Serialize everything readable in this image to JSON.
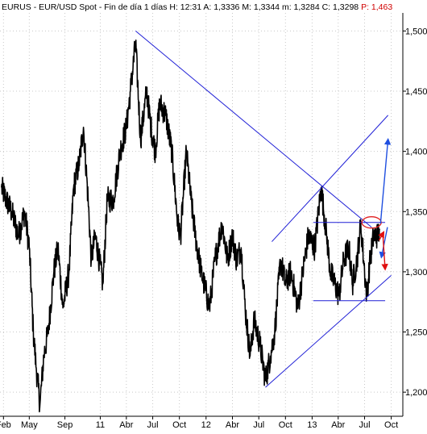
{
  "header": {
    "symbol": "EURUS",
    "sep1": "-",
    "name": "EUR/USD Spot",
    "sep2": "-",
    "interval": "Fin de día 1 días",
    "h_label": "H:",
    "h_value": "12:31",
    "a_label": "A:",
    "a_value": "1,3336",
    "m_label": "M:",
    "m_value": "1,3344",
    "mn_label": "m:",
    "mn_value": "1,3284",
    "c_label": "C:",
    "c_value": "1,3298",
    "p_label": "P:",
    "p_value": "1,463"
  },
  "colors": {
    "price": "#000000",
    "trendlines": "#1f1fd6",
    "arrow_up": "#1f4fe0",
    "arrow_down": "#e01010",
    "circle": "#e02020",
    "grid": "#c8c8c8",
    "p_value": "#d00000"
  },
  "chart_data": {
    "type": "line",
    "title": "EURUS - EUR/USD Spot - Fin de día 1 días",
    "x_ticks": [
      "Feb",
      "May",
      "Sep",
      "11",
      "Abr",
      "Jul",
      "Oct",
      "12",
      "Abr",
      "Jul",
      "Oct",
      "13",
      "Abr",
      "Jul",
      "Oct"
    ],
    "y_ticks": [
      "1,500",
      "1,450",
      "1,400",
      "1,350",
      "1,300",
      "1,250",
      "1,200"
    ],
    "ylim": [
      1.18,
      1.515
    ],
    "xlim": [
      "2010-01-20",
      "2013-11-10"
    ],
    "grid": true,
    "series": [
      {
        "values": [
          [
            "2010-01-25",
            1.37
          ],
          [
            "2010-02-10",
            1.36
          ],
          [
            "2010-03-01",
            1.35
          ],
          [
            "2010-03-25",
            1.33
          ],
          [
            "2010-04-15",
            1.35
          ],
          [
            "2010-05-01",
            1.32
          ],
          [
            "2010-05-15",
            1.25
          ],
          [
            "2010-05-25",
            1.22
          ],
          [
            "2010-06-07",
            1.19
          ],
          [
            "2010-06-20",
            1.23
          ],
          [
            "2010-07-05",
            1.25
          ],
          [
            "2010-07-25",
            1.3
          ],
          [
            "2010-08-08",
            1.32
          ],
          [
            "2010-08-25",
            1.27
          ],
          [
            "2010-09-15",
            1.3
          ],
          [
            "2010-10-01",
            1.37
          ],
          [
            "2010-10-20",
            1.39
          ],
          [
            "2010-11-04",
            1.42
          ],
          [
            "2010-11-20",
            1.36
          ],
          [
            "2010-12-01",
            1.31
          ],
          [
            "2010-12-15",
            1.33
          ],
          [
            "2011-01-10",
            1.29
          ],
          [
            "2011-01-25",
            1.36
          ],
          [
            "2011-02-15",
            1.36
          ],
          [
            "2011-03-10",
            1.4
          ],
          [
            "2011-04-01",
            1.42
          ],
          [
            "2011-04-15",
            1.45
          ],
          [
            "2011-05-03",
            1.49
          ],
          [
            "2011-05-20",
            1.41
          ],
          [
            "2011-06-10",
            1.45
          ],
          [
            "2011-06-25",
            1.42
          ],
          [
            "2011-07-10",
            1.4
          ],
          [
            "2011-07-25",
            1.44
          ],
          [
            "2011-08-15",
            1.43
          ],
          [
            "2011-09-05",
            1.4
          ],
          [
            "2011-09-25",
            1.34
          ],
          [
            "2011-10-05",
            1.33
          ],
          [
            "2011-10-25",
            1.4
          ],
          [
            "2011-11-10",
            1.36
          ],
          [
            "2011-11-25",
            1.33
          ],
          [
            "2011-12-15",
            1.3
          ],
          [
            "2012-01-13",
            1.27
          ],
          [
            "2012-02-01",
            1.31
          ],
          [
            "2012-02-25",
            1.34
          ],
          [
            "2012-03-15",
            1.31
          ],
          [
            "2012-04-01",
            1.33
          ],
          [
            "2012-04-15",
            1.31
          ],
          [
            "2012-05-01",
            1.32
          ],
          [
            "2012-05-15",
            1.27
          ],
          [
            "2012-06-01",
            1.23
          ],
          [
            "2012-06-15",
            1.26
          ],
          [
            "2012-07-05",
            1.24
          ],
          [
            "2012-07-24",
            1.21
          ],
          [
            "2012-08-10",
            1.23
          ],
          [
            "2012-08-25",
            1.25
          ],
          [
            "2012-09-14",
            1.31
          ],
          [
            "2012-10-01",
            1.29
          ],
          [
            "2012-10-20",
            1.3
          ],
          [
            "2012-11-13",
            1.27
          ],
          [
            "2012-11-30",
            1.3
          ],
          [
            "2012-12-19",
            1.33
          ],
          [
            "2013-01-10",
            1.32
          ],
          [
            "2013-02-01",
            1.37
          ],
          [
            "2013-02-20",
            1.33
          ],
          [
            "2013-03-05",
            1.3
          ],
          [
            "2013-03-20",
            1.29
          ],
          [
            "2013-04-04",
            1.28
          ],
          [
            "2013-04-20",
            1.31
          ],
          [
            "2013-05-08",
            1.32
          ],
          [
            "2013-05-20",
            1.29
          ],
          [
            "2013-06-05",
            1.31
          ],
          [
            "2013-06-18",
            1.34
          ],
          [
            "2013-07-01",
            1.3
          ],
          [
            "2013-07-09",
            1.28
          ],
          [
            "2013-07-20",
            1.31
          ],
          [
            "2013-08-01",
            1.33
          ],
          [
            "2013-08-15",
            1.33
          ],
          [
            "2013-08-22",
            1.335
          ]
        ]
      }
    ],
    "annotations": {
      "trend_lines": [
        {
          "from": [
            "2011-05-03",
            1.5
          ],
          "to": [
            "2013-07-25",
            1.337
          ]
        },
        {
          "from": [
            "2012-08-15",
            1.325
          ],
          "to": [
            "2013-09-20",
            1.43
          ]
        },
        {
          "from": [
            "2012-07-24",
            1.204
          ],
          "to": [
            "2013-10-01",
            1.297
          ]
        }
      ],
      "horizontal_lines": [
        {
          "from": "2013-01-05",
          "to": "2013-09-10",
          "y": 1.341
        },
        {
          "from": "2013-01-05",
          "to": "2013-09-10",
          "y": 1.276
        }
      ],
      "circle": {
        "x": "2013-07-25",
        "y": 1.341
      },
      "arrows": [
        {
          "color": "blue",
          "from": [
            "2013-08-25",
            1.34
          ],
          "to": [
            "2013-09-20",
            1.41
          ]
        },
        {
          "color": "blue",
          "from": [
            "2013-09-18",
            1.337
          ],
          "to": [
            "2013-08-28",
            1.312
          ]
        },
        {
          "color": "red",
          "from": [
            "2013-08-20",
            1.326
          ],
          "to": [
            "2013-09-05",
            1.333
          ]
        },
        {
          "color": "red",
          "from": [
            "2013-09-02",
            1.331
          ],
          "to": [
            "2013-09-10",
            1.302
          ]
        }
      ]
    }
  }
}
